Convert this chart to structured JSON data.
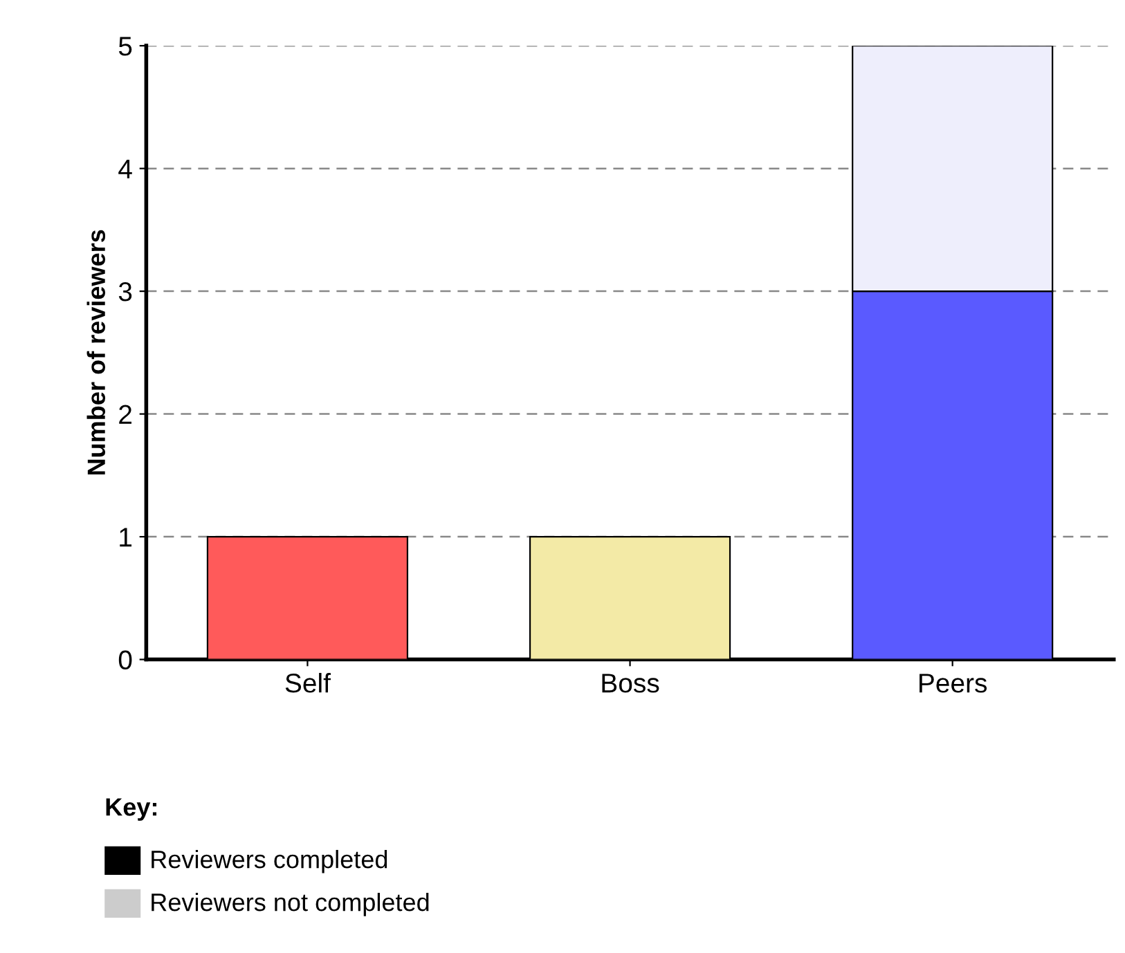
{
  "chart_data": {
    "type": "bar",
    "ylabel": "Number of reviewers",
    "categories": [
      "Self",
      "Boss",
      "Peers"
    ],
    "stacked": true,
    "series": [
      {
        "color": "#000000",
        "colors": [
          "#ff5a5a",
          "#f3eaa6",
          "#5a5aff"
        ],
        "values": [
          1,
          1,
          3
        ]
      },
      {
        "color": "#cccccc",
        "colors": [
          "#eeeefc",
          "#eeeefc",
          "#eeeefc"
        ],
        "values": [
          null,
          null,
          2
        ]
      }
    ],
    "annotations": [
      "Key:",
      "Reviewers completed",
      "Reviewers not completed"
    ],
    "ylim": [
      0,
      5
    ],
    "yticks": [
      0,
      1,
      2,
      3,
      4,
      5
    ],
    "grid": "y"
  }
}
